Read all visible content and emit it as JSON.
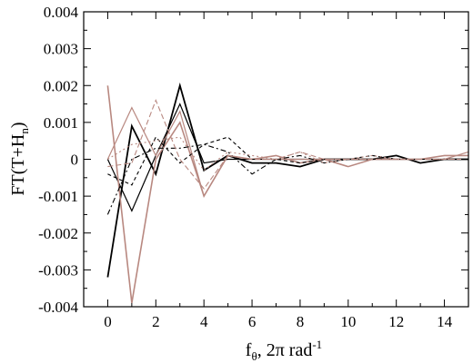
{
  "chart_data": {
    "type": "line",
    "title": "",
    "xlabel": "f",
    "xlabel_sub": "θ",
    "xlabel_rest": ", 2π rad",
    "xlabel_sup": "-1",
    "ylabel": "FT(T+H",
    "ylabel_sub": "n",
    "ylabel_end": ")",
    "xlim": [
      -1,
      15
    ],
    "ylim": [
      -0.004,
      0.004
    ],
    "xticks": [
      0,
      2,
      4,
      6,
      8,
      10,
      12,
      14
    ],
    "xtick_labels": [
      "0",
      "2",
      "4",
      "6",
      "8",
      "10",
      "12",
      "14"
    ],
    "yticks": [
      -0.004,
      -0.003,
      -0.002,
      -0.001,
      0,
      0.001,
      0.002,
      0.003,
      0.004
    ],
    "ytick_labels": [
      "-0.004",
      "-0.003",
      "-0.002",
      "-0.001",
      "0",
      "0.001",
      "0.002",
      "0.003",
      "0.004"
    ],
    "grid": false,
    "series": [
      {
        "color": "#000000",
        "dash": "solid",
        "width": 1.8,
        "x": [
          0,
          1,
          2,
          3,
          4,
          5,
          6,
          7,
          8,
          9,
          10,
          11,
          12,
          13,
          14,
          15
        ],
        "y": [
          -0.0032,
          0.0009,
          -0.0004,
          0.002,
          -0.0003,
          0.0001,
          -0.0001,
          -0.0001,
          -0.0002,
          0.0,
          0.0,
          0.0,
          0.0001,
          -0.0001,
          0.0,
          0.0
        ]
      },
      {
        "color": "#000000",
        "dash": "solid",
        "width": 1.2,
        "x": [
          0,
          1,
          2,
          3,
          4,
          5,
          6,
          7,
          8,
          9,
          10,
          11,
          12,
          13,
          14,
          15
        ],
        "y": [
          0.0,
          -0.0014,
          0.0001,
          0.0015,
          -0.0001,
          0.0,
          0.0,
          0.0,
          0.0,
          0.0,
          0.0,
          0.0,
          0.0,
          0.0,
          0.0,
          0.0
        ]
      },
      {
        "color": "#b88880",
        "dash": "solid",
        "width": 1.6,
        "x": [
          0,
          1,
          2,
          3,
          4,
          5,
          6,
          7,
          8,
          9,
          10,
          11,
          12,
          13,
          14,
          15
        ],
        "y": [
          0.002,
          -0.0039,
          0.0,
          0.001,
          -0.001,
          0.0001,
          0.0,
          0.0001,
          -0.0001,
          0.0,
          -0.0002,
          0.0,
          0.0,
          0.0,
          0.0001,
          0.0001
        ]
      },
      {
        "color": "#b88880",
        "dash": "solid",
        "width": 1.2,
        "x": [
          0,
          1,
          2,
          3,
          4,
          5,
          6,
          7,
          8,
          9,
          10,
          11,
          12,
          13,
          14,
          15
        ],
        "y": [
          0.0,
          0.0014,
          0.0001,
          0.0013,
          -0.001,
          0.0001,
          0.0,
          0.0,
          0.0,
          0.0,
          0.0,
          0.0,
          0.0,
          0.0,
          0.0,
          0.0002
        ]
      },
      {
        "color": "#000000",
        "dash": "6,3,2,3",
        "width": 1.1,
        "x": [
          0,
          1,
          2,
          3,
          4,
          5,
          6,
          7,
          8,
          9,
          10,
          11,
          12,
          13,
          14,
          15
        ],
        "y": [
          -0.0015,
          0.0,
          0.0003,
          0.0003,
          0.0004,
          0.0002,
          -0.0004,
          0.0,
          0.0001,
          -0.0001,
          0.0,
          0.0,
          0.0,
          0.0,
          0.0,
          0.0
        ]
      },
      {
        "color": "#000000",
        "dash": "4,3",
        "width": 1.1,
        "x": [
          0,
          1,
          2,
          3,
          4,
          5,
          6,
          7,
          8,
          9,
          10,
          11,
          12,
          13,
          14,
          15
        ],
        "y": [
          -0.0004,
          -0.0007,
          0.0006,
          -0.0001,
          0.0004,
          0.0006,
          0.0,
          0.0,
          -0.0001,
          0.0,
          0.0,
          0.0001,
          0.0,
          0.0,
          0.0,
          0.0
        ]
      },
      {
        "color": "#b88880",
        "dash": "6,3",
        "width": 1.1,
        "x": [
          0,
          1,
          2,
          3,
          4,
          5,
          6,
          7,
          8,
          9,
          10,
          11,
          12,
          13,
          14,
          15
        ],
        "y": [
          -0.0002,
          -0.0001,
          0.0016,
          0.0,
          -0.0008,
          0.0001,
          0.0,
          0.0,
          0.0002,
          0.0,
          0.0,
          0.0,
          0.0,
          0.0,
          0.0,
          0.0
        ]
      },
      {
        "color": "#b88880",
        "dash": "2,3",
        "width": 1.1,
        "x": [
          0,
          1,
          2,
          3,
          4,
          5,
          6,
          7,
          8,
          9,
          10,
          11,
          12,
          13,
          14,
          15
        ],
        "y": [
          0.0,
          0.0004,
          0.0005,
          0.0006,
          -0.0003,
          0.0002,
          0.0001,
          0.0,
          0.0002,
          -0.0001,
          0.0,
          0.0001,
          0.0,
          0.0,
          0.0,
          0.0
        ]
      }
    ]
  }
}
